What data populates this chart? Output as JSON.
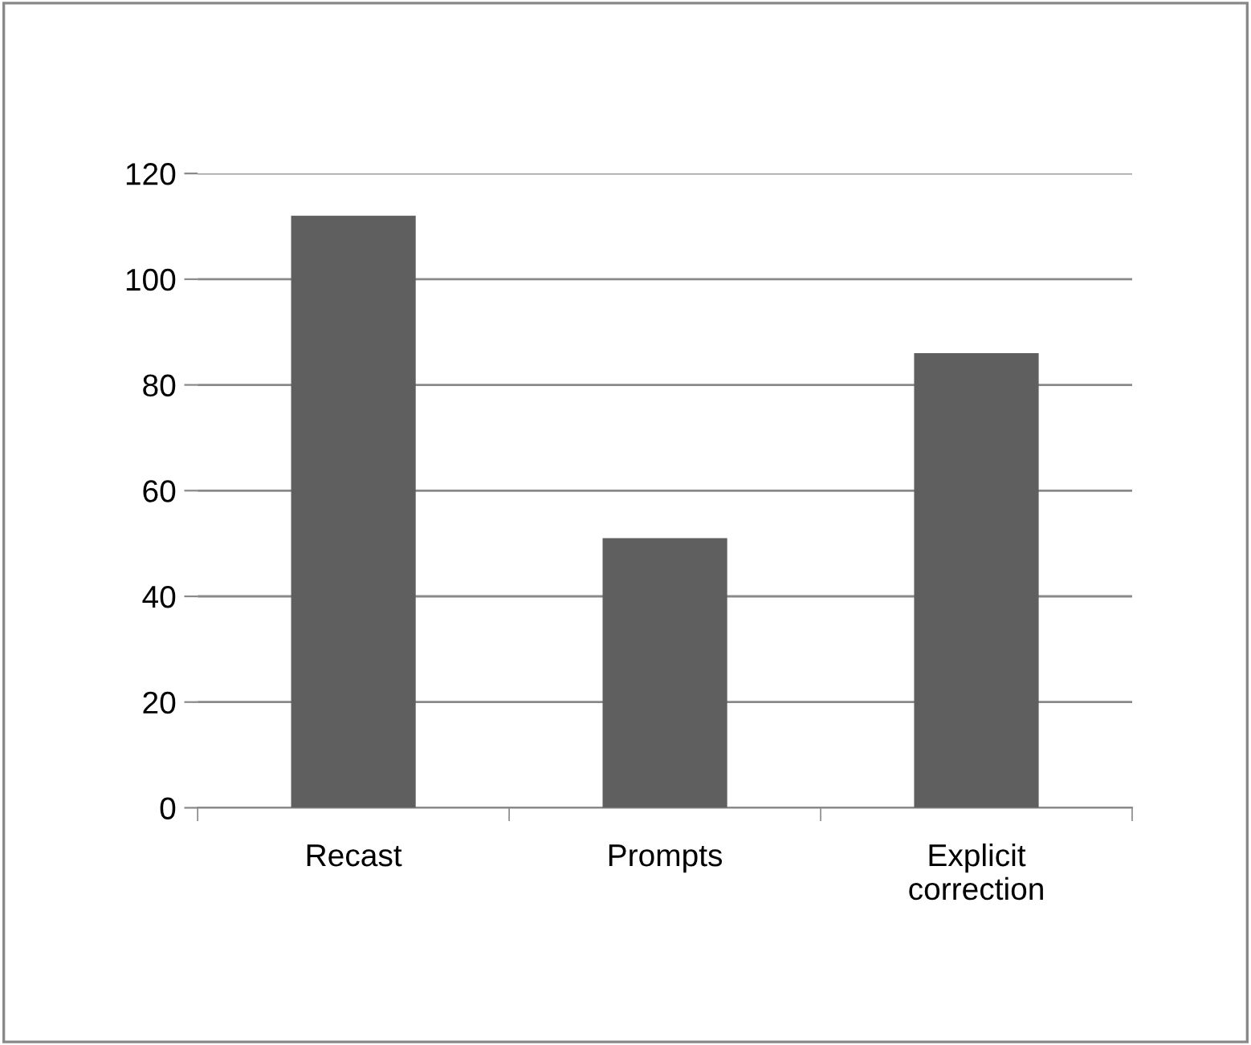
{
  "chart_data": {
    "type": "bar",
    "categories": [
      "Recast",
      "Prompts",
      "Explicit\ncorrection"
    ],
    "values": [
      112,
      51,
      86
    ],
    "color": "#5f5f5f",
    "ylim": [
      0,
      120
    ],
    "yticks": [
      0,
      20,
      40,
      60,
      80,
      100,
      120
    ],
    "grid": "y"
  }
}
